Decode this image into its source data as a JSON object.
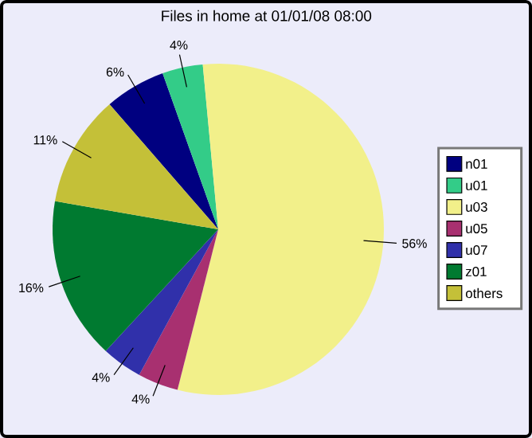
{
  "chart_data": {
    "type": "pie",
    "title": "Files in home at 01/01/08 08:00",
    "categories": [
      "n01",
      "u01",
      "u03",
      "u05",
      "u07",
      "z01",
      "others"
    ],
    "values": [
      6,
      4,
      56,
      4,
      4,
      16,
      11
    ],
    "value_labels": [
      "6%",
      "4%",
      "56%",
      "4%",
      "4%",
      "16%",
      "11%"
    ],
    "colors": [
      "#000080",
      "#33cc88",
      "#f2f08a",
      "#a83070",
      "#3030aa",
      "#007a30",
      "#c4c038"
    ],
    "legend": "right"
  }
}
